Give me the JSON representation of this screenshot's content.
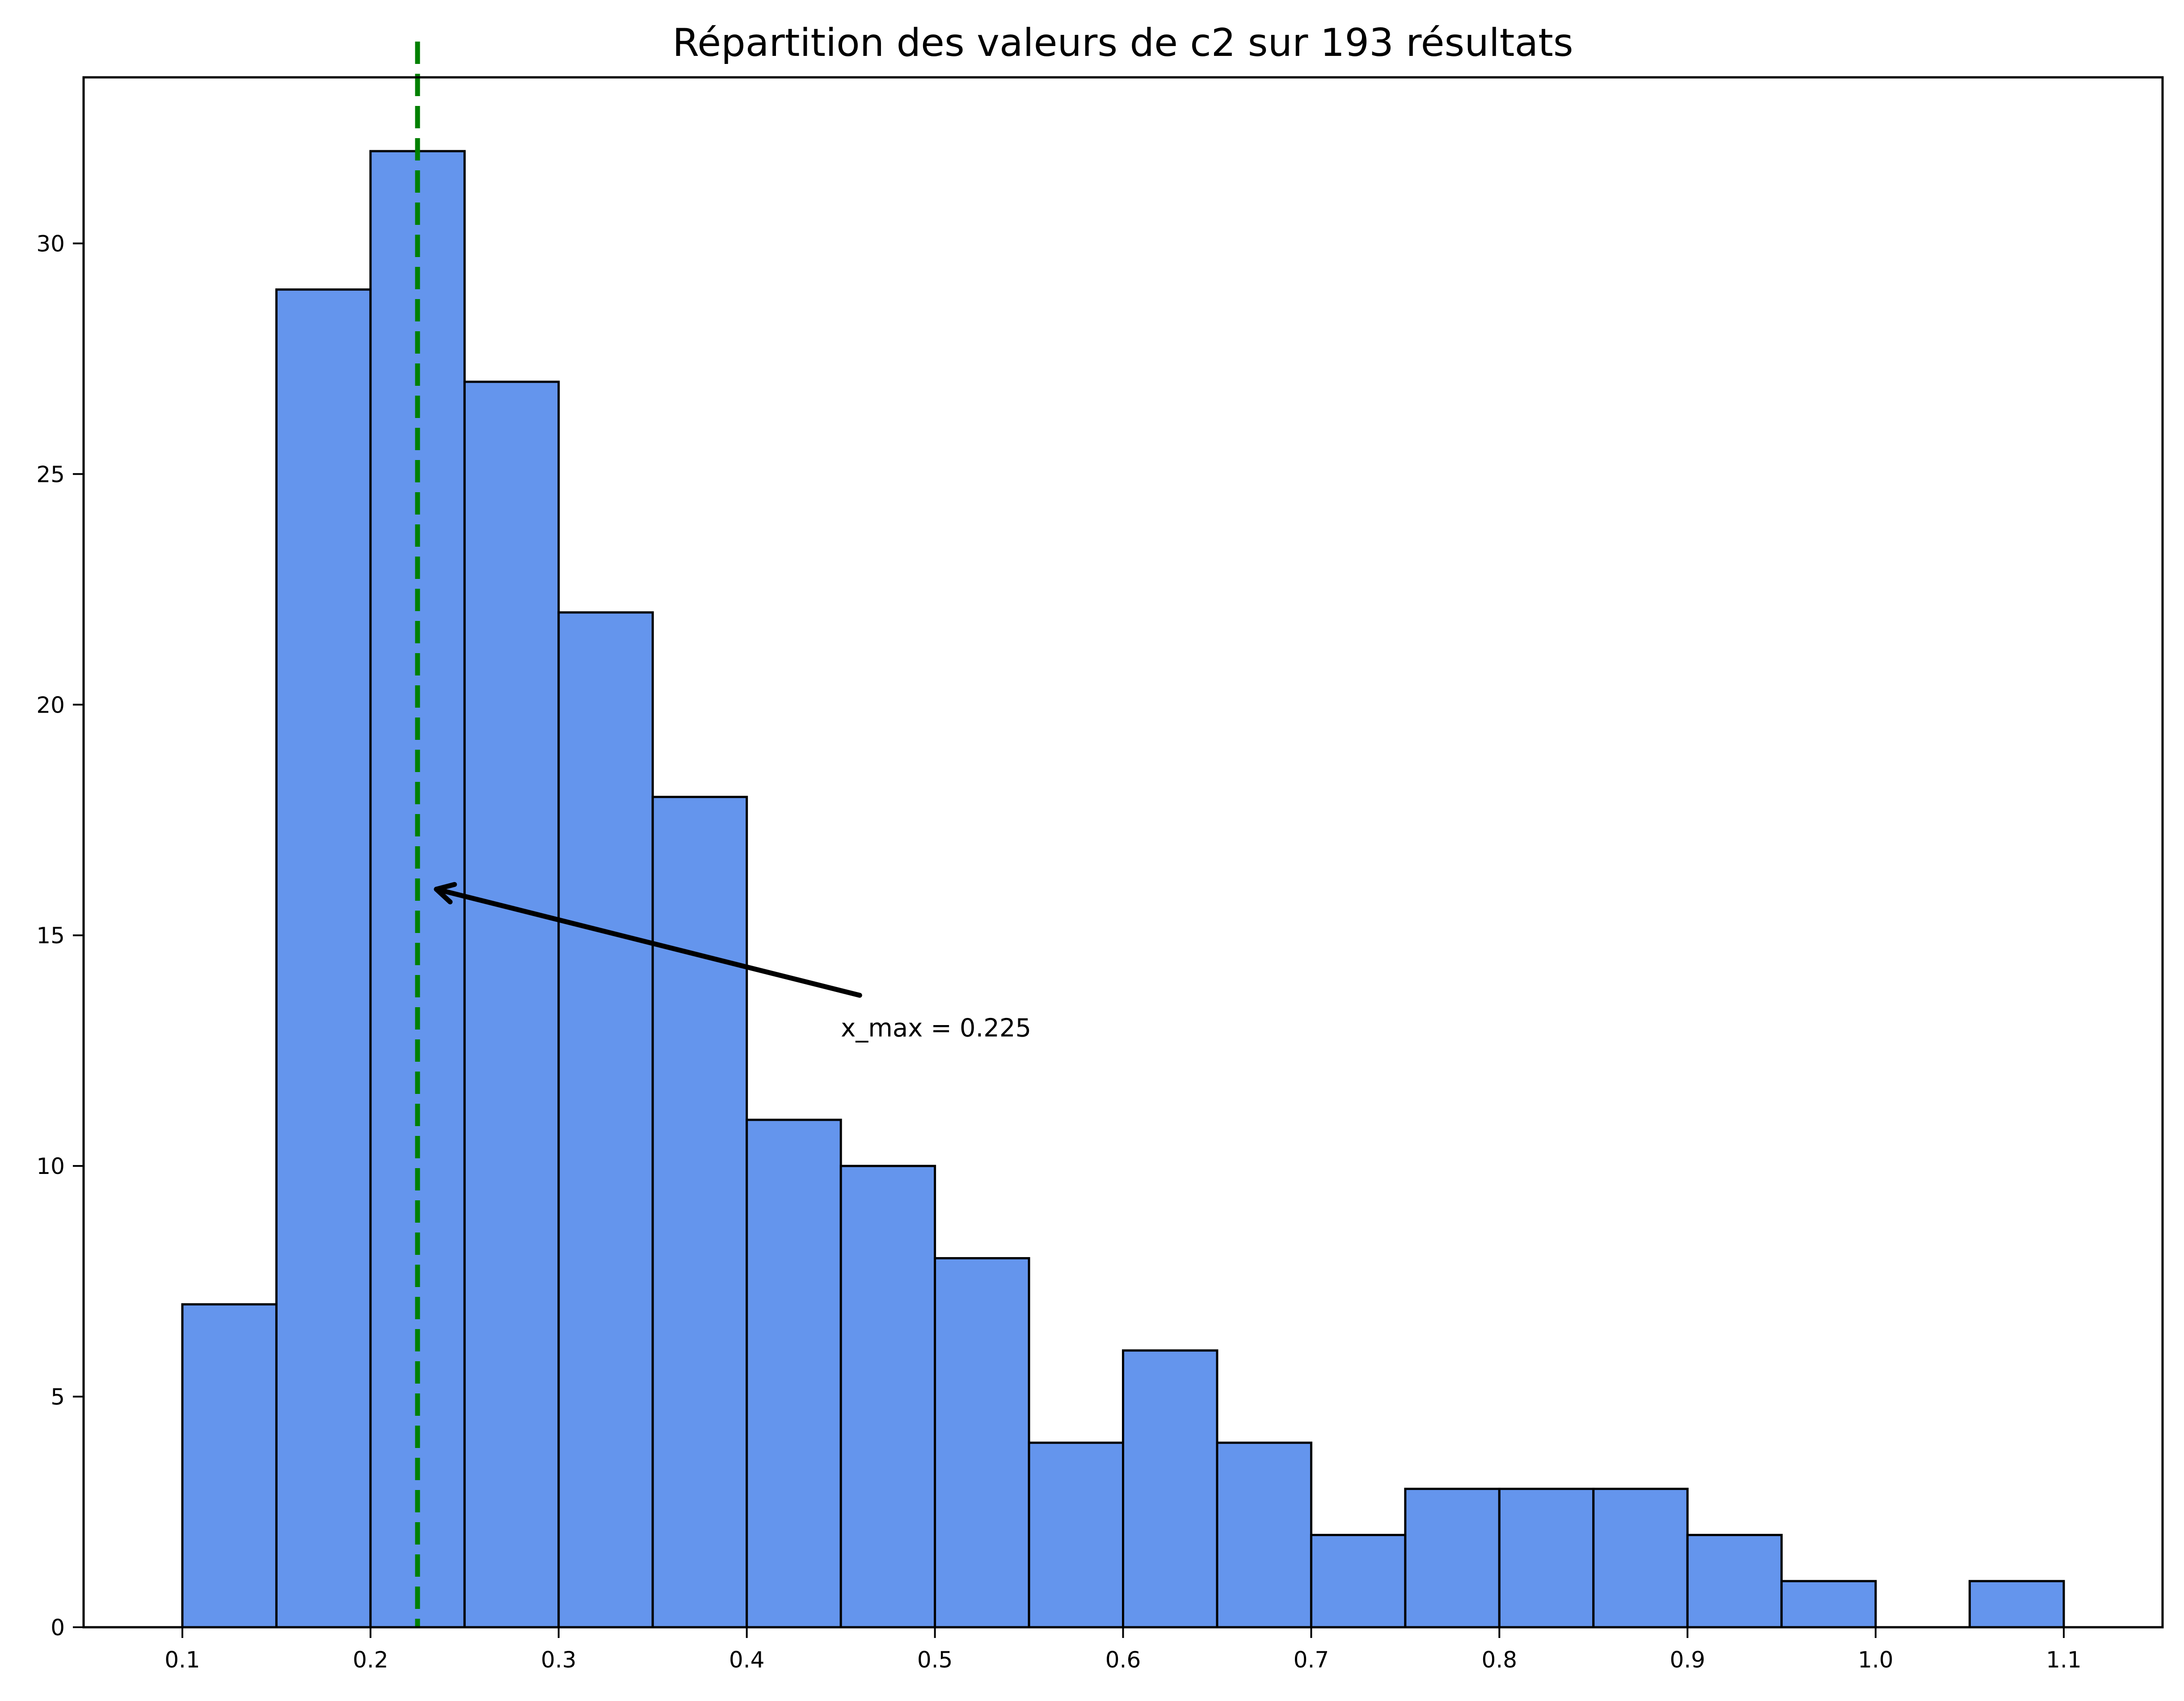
{
  "chart_data": {
    "type": "bar",
    "subtype": "histogram",
    "title": "Répartition des valeurs de c2 sur 193 résultats",
    "xlabel": "",
    "ylabel": "",
    "bin_width": 0.05,
    "bin_edges": [
      0.1,
      0.15,
      0.2,
      0.25,
      0.3,
      0.35,
      0.4,
      0.45,
      0.5,
      0.55,
      0.6,
      0.65,
      0.7,
      0.75,
      0.8,
      0.85,
      0.9,
      0.95,
      1.0,
      1.05,
      1.1
    ],
    "categories": [
      "0.10-0.15",
      "0.15-0.20",
      "0.20-0.25",
      "0.25-0.30",
      "0.30-0.35",
      "0.35-0.40",
      "0.40-0.45",
      "0.45-0.50",
      "0.50-0.55",
      "0.55-0.60",
      "0.60-0.65",
      "0.65-0.70",
      "0.70-0.75",
      "0.75-0.80",
      "0.80-0.85",
      "0.85-0.90",
      "0.90-0.95",
      "0.95-1.00",
      "1.00-1.05",
      "1.05-1.10"
    ],
    "values": [
      7,
      29,
      32,
      27,
      22,
      18,
      11,
      10,
      8,
      4,
      6,
      4,
      2,
      3,
      3,
      3,
      2,
      1,
      0,
      1
    ],
    "total_count": 193,
    "xlim": [
      0.0475,
      1.1525
    ],
    "ylim": [
      0,
      33.6
    ],
    "xticks": [
      0.1,
      0.2,
      0.3,
      0.4,
      0.5,
      0.6,
      0.7,
      0.8,
      0.9,
      1.0,
      1.1
    ],
    "xtick_labels": [
      "0.1",
      "0.2",
      "0.3",
      "0.4",
      "0.5",
      "0.6",
      "0.7",
      "0.8",
      "0.9",
      "1.0",
      "1.1"
    ],
    "yticks": [
      0,
      5,
      10,
      15,
      20,
      25,
      30
    ],
    "ytick_labels": [
      "0",
      "5",
      "10",
      "15",
      "20",
      "25",
      "30"
    ],
    "grid": false,
    "legend": null,
    "reference_line": {
      "x": 0.225,
      "style": "dashed",
      "color": "#008000",
      "orientation": "vertical"
    },
    "annotation": {
      "text": "x_max = 0.225",
      "arrow_from": [
        0.46,
        13.7
      ],
      "arrow_to": [
        0.235,
        16.0
      ],
      "text_position": [
        0.45,
        13.0
      ]
    },
    "colors": {
      "bar_fill": "#6495ED",
      "bar_edge": "#000000",
      "ref_line": "#008000",
      "axes": "#000000",
      "background": "#ffffff"
    }
  }
}
